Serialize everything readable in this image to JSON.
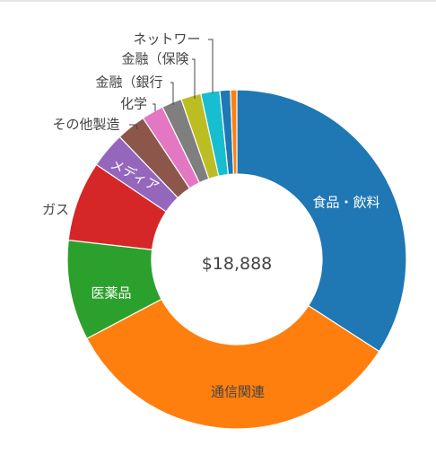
{
  "chart_data": {
    "type": "pie",
    "center_label": "$18,888",
    "slices": [
      {
        "label": "食品・飲料",
        "value": 34.0,
        "color": "#1f77b4",
        "text_color": "#ffffff"
      },
      {
        "label": "通信関連",
        "value": 33.0,
        "color": "#ff7f0e",
        "text_color": "#444444"
      },
      {
        "label": "医薬品",
        "value": 9.5,
        "color": "#2ca02c",
        "text_color": "#ffffff"
      },
      {
        "label": "ガス",
        "value": 7.6,
        "color": "#d62728",
        "text_color": "#444444"
      },
      {
        "label": "メディア",
        "value": 3.4,
        "color": "#9467bd",
        "text_color": "#ffffff"
      },
      {
        "label": "その他製造",
        "value": 2.8,
        "color": "#8c564b",
        "text_color": "#444444"
      },
      {
        "label": "化学",
        "value": 2.1,
        "color": "#e377c2",
        "text_color": "#444444"
      },
      {
        "label": "金融（銀行",
        "value": 1.9,
        "color": "#7f7f7f",
        "text_color": "#444444"
      },
      {
        "label": "金融（保険",
        "value": 1.9,
        "color": "#bcbd22",
        "text_color": "#444444"
      },
      {
        "label": "ネットワー",
        "value": 1.8,
        "color": "#17becf",
        "text_color": "#444444"
      },
      {
        "label": "",
        "value": 1.0,
        "color": "#1f77b4",
        "text_color": "#444444"
      },
      {
        "label": "",
        "value": 0.6,
        "color": "#ff7f0e",
        "text_color": "#444444"
      }
    ]
  }
}
